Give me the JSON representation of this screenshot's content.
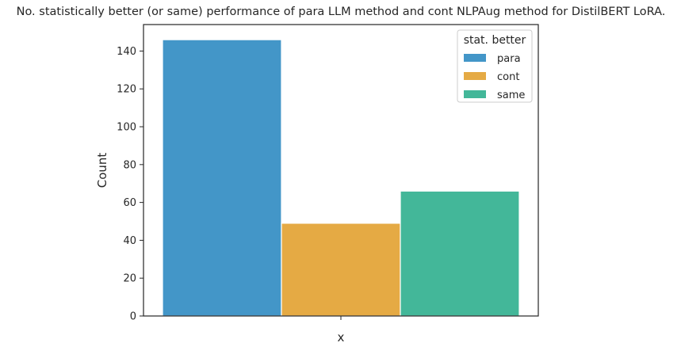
{
  "chart_data": {
    "type": "bar",
    "title": "No. statistically better (or same) performance of para LLM method and cont NLPAug method for DistilBERT LoRA.",
    "xlabel": "x",
    "ylabel": "Count",
    "ylim": [
      0,
      154
    ],
    "yticks": [
      0,
      20,
      40,
      60,
      80,
      100,
      120,
      140
    ],
    "grid": false,
    "legend": {
      "title": "stat. better",
      "placement": "top-right"
    },
    "categories": [
      "para",
      "cont",
      "same"
    ],
    "values": [
      146,
      49,
      66
    ],
    "series": [
      {
        "name": "para",
        "value": 146,
        "color": "#4396c8"
      },
      {
        "name": "cont",
        "value": 49,
        "color": "#e5aa44"
      },
      {
        "name": "same",
        "value": 66,
        "color": "#43b799"
      }
    ]
  }
}
